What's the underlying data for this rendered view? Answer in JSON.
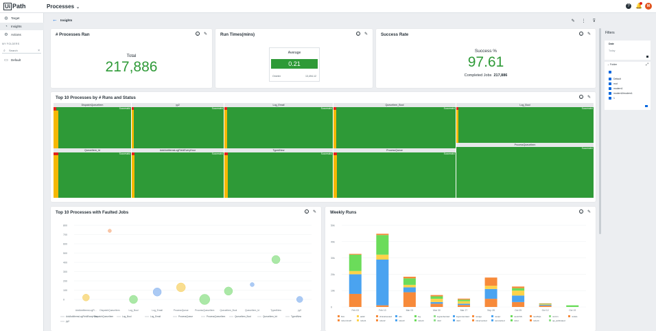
{
  "app": {
    "logo_text": "UiPath",
    "logo_box": "Ui",
    "logo_rest": "Path",
    "title": "Processes",
    "avatar_initials": "M"
  },
  "sidebar": {
    "items": [
      {
        "label": "Target",
        "icon": "globe-icon"
      },
      {
        "label": "Insights",
        "icon": "insights-icon"
      },
      {
        "label": "Actions",
        "icon": "actions-icon"
      }
    ],
    "section": "MY FOLDERS",
    "search_placeholder": "Search",
    "folder": "Default"
  },
  "breadcrumb": {
    "page": "Insights"
  },
  "cards": {
    "processes_ran": {
      "title": "# Processes Ran",
      "label": "Total",
      "value": "217,886"
    },
    "run_times": {
      "title": "Run Times(mins)",
      "label": "Average",
      "value": "0.21",
      "foot_label": "Ometer",
      "foot_value": "13,494.12"
    },
    "success_rate": {
      "title": "Success Rate",
      "label": "Success %",
      "value": "97.61",
      "completed_label": "Completed Jobs",
      "completed_value": "217,886"
    },
    "top10_status": {
      "title": "Top 10 Processes by # Runs and Status"
    },
    "top10_faulted": {
      "title": "Top 10 Processes with Faulted Jobs"
    },
    "weekly_runs": {
      "title": "Weekly Runs"
    }
  },
  "treemap": {
    "success_label": "Successful",
    "cells": [
      {
        "name": "DispatchQueueItem"
      },
      {
        "name": "yy2"
      },
      {
        "name": "Log_Email"
      },
      {
        "name": "QueueItem_Bool"
      },
      {
        "name": "Log_Bool"
      },
      {
        "name": "QueueItem_Id"
      },
      {
        "name": "AddAddItemsLogFieldEveryHour"
      },
      {
        "name": "TypedNew"
      },
      {
        "name": "ProcessQueue"
      },
      {
        "name": "ProcessQueueItem"
      }
    ]
  },
  "faulted_chart": {
    "y_ticks": [
      "800",
      "700",
      "600",
      "500",
      "400",
      "300",
      "200",
      "100",
      "0"
    ],
    "x_labels": [
      "AddAddItemsLogFi...",
      "DispatchQueueItem",
      "Log_Bool",
      "Log_Email",
      "ProcessQueue",
      "ProcessQueueItem",
      "QueueItem_Bool",
      "QueueItem_Id",
      "TypedNew",
      "yy2"
    ],
    "legend": [
      "AddAddItemsLogFieldEveryHour",
      "DispatchQueueItem",
      "Log_Bool",
      "Log_Email",
      "ProcessQueue",
      "ProcessQueueItem",
      "QueueItem_Bool",
      "QueueItem_Int",
      "TypedNew",
      "yy2"
    ]
  },
  "weekly_chart": {
    "y_ticks": [
      "50k",
      "40k",
      "30k",
      "20k",
      "10k",
      "0"
    ],
    "x_labels": [
      "Feb 03",
      "Feb 10",
      "Mar 03",
      "Mar 30",
      "Mar 27",
      "Sep 28",
      "Oct 05",
      "Oct 12",
      "Oct 19"
    ],
    "legend": [
      "N/A",
      "add2",
      "clinicalnested",
      "cdn",
      "log",
      "logcanberded",
      "logcontentded",
      "nestgo",
      "nestpr",
      "nestCSS",
      "nestSQL",
      "nmCrx",
      "nmEls",
      "robot-fmsiff",
      "robot1",
      "robot2",
      "robot3",
      "robot4",
      "nfo2",
      "nfe3",
      "mlnerverded",
      "nerutorded",
      "robot",
      "robot4",
      "qa_publicated"
    ]
  },
  "filters": {
    "title": "Filters",
    "date_label": "Date",
    "date_value": "Today",
    "folder_label": "Folder",
    "options": [
      "Default",
      "mut",
      "modern1",
      "modern2/modern1",
      "1"
    ]
  },
  "chart_data": [
    {
      "type": "scatter",
      "title": "Top 10 Processes with Faulted Jobs",
      "categories": [
        "AddAddItemsLogFieldEveryHour",
        "DispatchQueueItem",
        "Log_Bool",
        "Log_Email",
        "ProcessQueue",
        "ProcessQueueItem",
        "QueueItem_Bool",
        "QueueItem_Id",
        "TypedNew",
        "yy2"
      ],
      "values": [
        0,
        2,
        2,
        2,
        2,
        2,
        2,
        0,
        0,
        0
      ],
      "points": [
        {
          "x": "AddAddItemsLogFi...",
          "y": 20
        },
        {
          "x": "DispatchQueueItem",
          "y": 740
        },
        {
          "x": "Log_Bool",
          "y": 0
        },
        {
          "x": "Log_Email",
          "y": 80
        },
        {
          "x": "ProcessQueue",
          "y": 130
        },
        {
          "x": "ProcessQueueItem",
          "y": 0
        },
        {
          "x": "QueueItem_Bool",
          "y": 90
        },
        {
          "x": "QueueItem_Id",
          "y": 160
        },
        {
          "x": "TypedNew",
          "y": 430
        },
        {
          "x": "yy2",
          "y": 0
        }
      ],
      "colors": [
        "#f7d36b",
        "#f7b38a",
        "#8fe08a",
        "#8fb8f0",
        "#f7d36b",
        "#8fe08a",
        "#8fe08a",
        "#8fb8f0",
        "#8fe08a",
        "#8fb8f0"
      ],
      "ylim": [
        0,
        800
      ]
    },
    {
      "type": "bar",
      "title": "Weekly Runs",
      "categories": [
        "Feb 03",
        "Feb 10",
        "Mar 03",
        "Mar 30",
        "Mar 27",
        "Sep 28",
        "Oct 05",
        "Oct 12",
        "Oct 19"
      ],
      "series": [
        {
          "name": "",
          "color": "#f78a3a",
          "values": [
            8000,
            1000,
            9000,
            2000,
            1200,
            5000,
            3000,
            800,
            0
          ]
        },
        {
          "name": "",
          "color": "#4aa3f0",
          "values": [
            12000,
            28000,
            3000,
            1000,
            800,
            6000,
            4000,
            500,
            0
          ]
        },
        {
          "name": "",
          "color": "#ffd24a",
          "values": [
            2000,
            3000,
            1500,
            2000,
            1500,
            2000,
            3000,
            300,
            0
          ]
        },
        {
          "name": "",
          "color": "#6bdc5a",
          "values": [
            10000,
            12000,
            4000,
            1500,
            1000,
            0,
            1500,
            300,
            1000
          ]
        },
        {
          "name": "",
          "color": "#f78a3a",
          "values": [
            500,
            800,
            1000,
            800,
            600,
            5000,
            1000,
            300,
            0
          ]
        }
      ],
      "ylim": [
        0,
        50000
      ]
    }
  ]
}
